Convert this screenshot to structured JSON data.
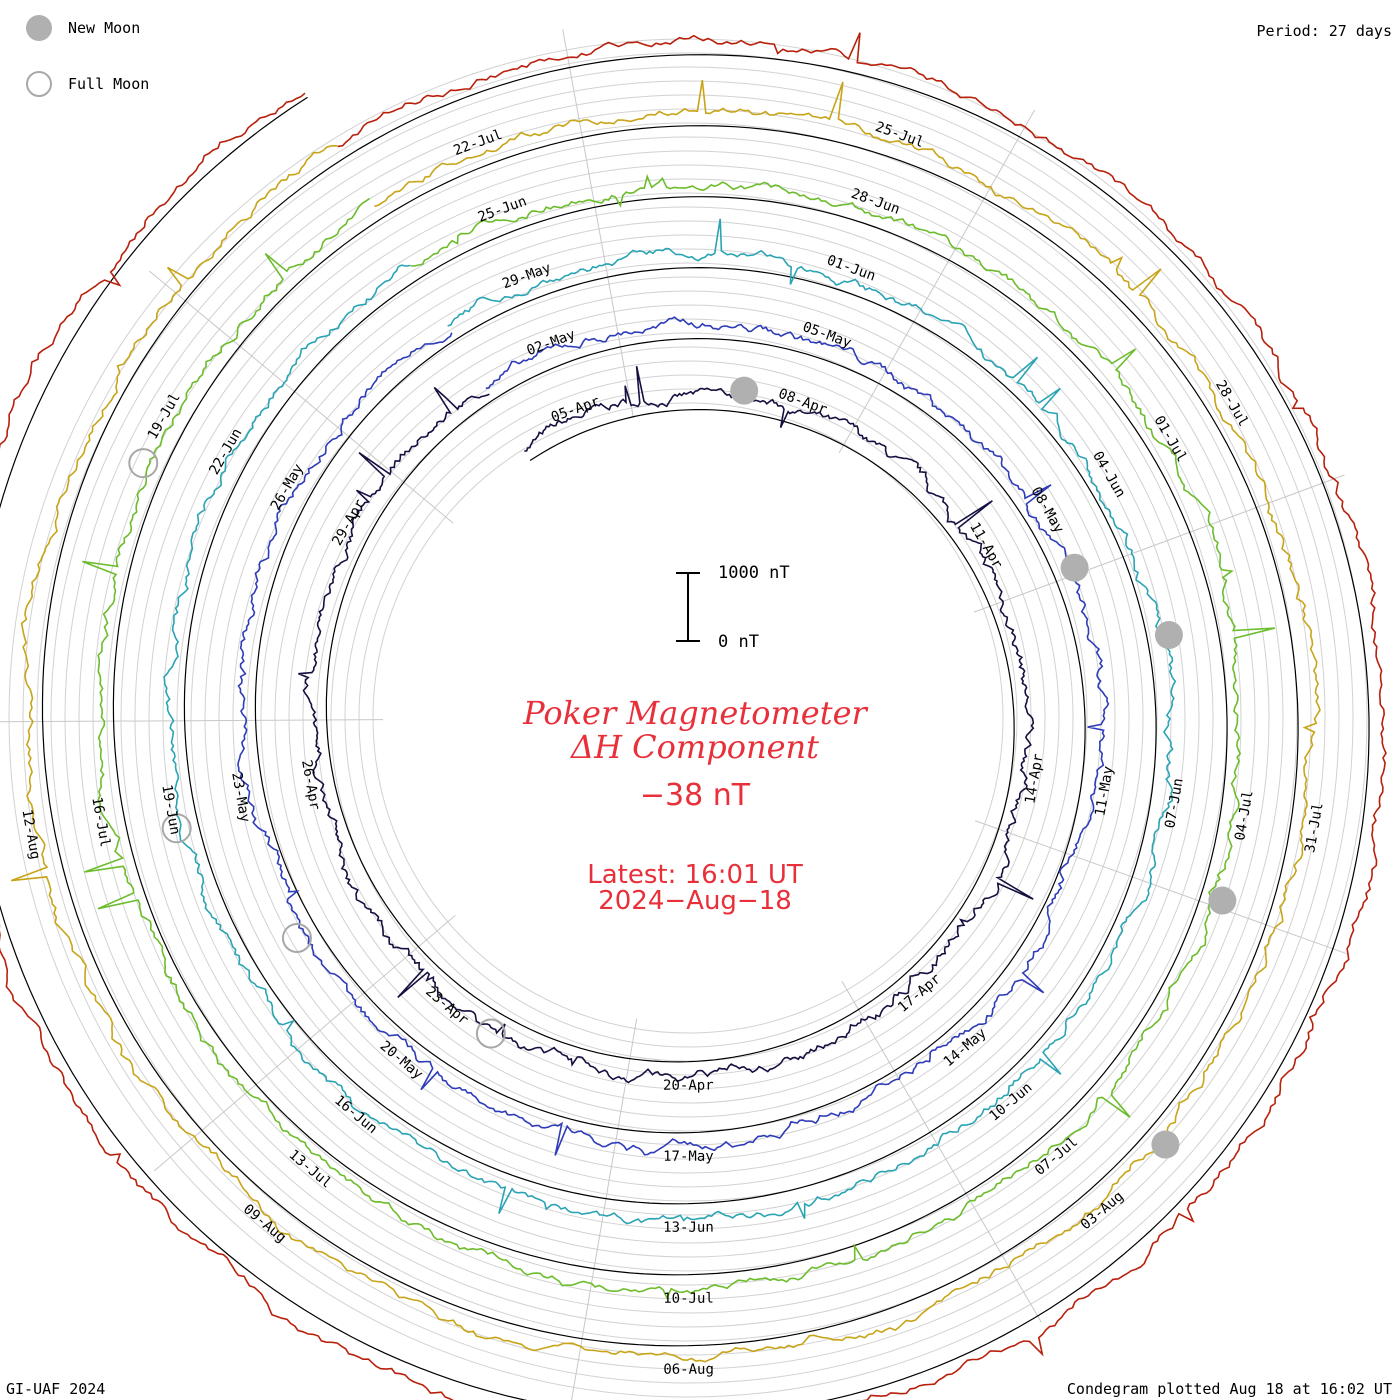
{
  "header": {
    "period": "Period: 27 days"
  },
  "legend": {
    "new_moon_label": "New Moon",
    "full_moon_label": "Full Moon",
    "new_moon_color": "#b0b0b0",
    "full_moon_color": "#a8a8a8"
  },
  "center": {
    "title_line1": "Poker Magnetometer",
    "title_line2": "ΔH Component",
    "current_value": "−38 nT",
    "latest_label": "Latest: 16:01 UT",
    "latest_date": "2024−Aug−18",
    "text_color": "#e8303a"
  },
  "scale_bar": {
    "top_label": "1000 nT",
    "bottom_label": "0 nT"
  },
  "footer": {
    "credit": "GI-UAF 2024",
    "plotted": "Condegram plotted Aug 18 at 16:02 UT"
  },
  "chart_data": {
    "type": "line",
    "title": "Poker Magnetometer ΔH Component",
    "layout": "spiral condegram",
    "period_days": 27,
    "rotations": [
      {
        "index": 1,
        "color": "#141040",
        "date_labels": [
          "05-Apr",
          "08-Apr",
          "11-Apr",
          "14-Apr",
          "17-Apr",
          "20-Apr",
          "23-Apr",
          "26-Apr",
          "29-Apr"
        ]
      },
      {
        "index": 2,
        "color": "#2e3cb8",
        "date_labels": [
          "02-May",
          "05-May",
          "08-May",
          "11-May",
          "14-May",
          "17-May",
          "20-May",
          "23-May",
          "26-May"
        ]
      },
      {
        "index": 3,
        "color": "#2aa4b4",
        "date_labels": [
          "29-May",
          "01-Jun",
          "04-Jun",
          "07-Jun",
          "10-Jun",
          "13-Jun",
          "16-Jun",
          "19-Jun",
          "22-Jun"
        ]
      },
      {
        "index": 4,
        "color": "#6cbc2c",
        "date_labels": [
          "25-Jun",
          "28-Jun",
          "01-Jul",
          "04-Jul",
          "07-Jul",
          "10-Jul",
          "13-Jul",
          "16-Jul",
          "19-Jul"
        ]
      },
      {
        "index": 5,
        "color": "#c8a418",
        "date_labels": [
          "22-Jul",
          "25-Jul",
          "28-Jul",
          "31-Jul",
          "03-Aug",
          "06-Aug",
          "09-Aug",
          "12-Aug"
        ]
      },
      {
        "index": 6,
        "color": "#b8200c",
        "date_labels": []
      }
    ],
    "new_moons": [
      "08-Apr",
      "08-May",
      "06-Jun",
      "06-Jul",
      "04-Aug"
    ],
    "full_moons": [
      "23-Apr",
      "23-May",
      "22-Jun",
      "21-Jul"
    ],
    "y_scale_nT": [
      0,
      1000
    ]
  }
}
